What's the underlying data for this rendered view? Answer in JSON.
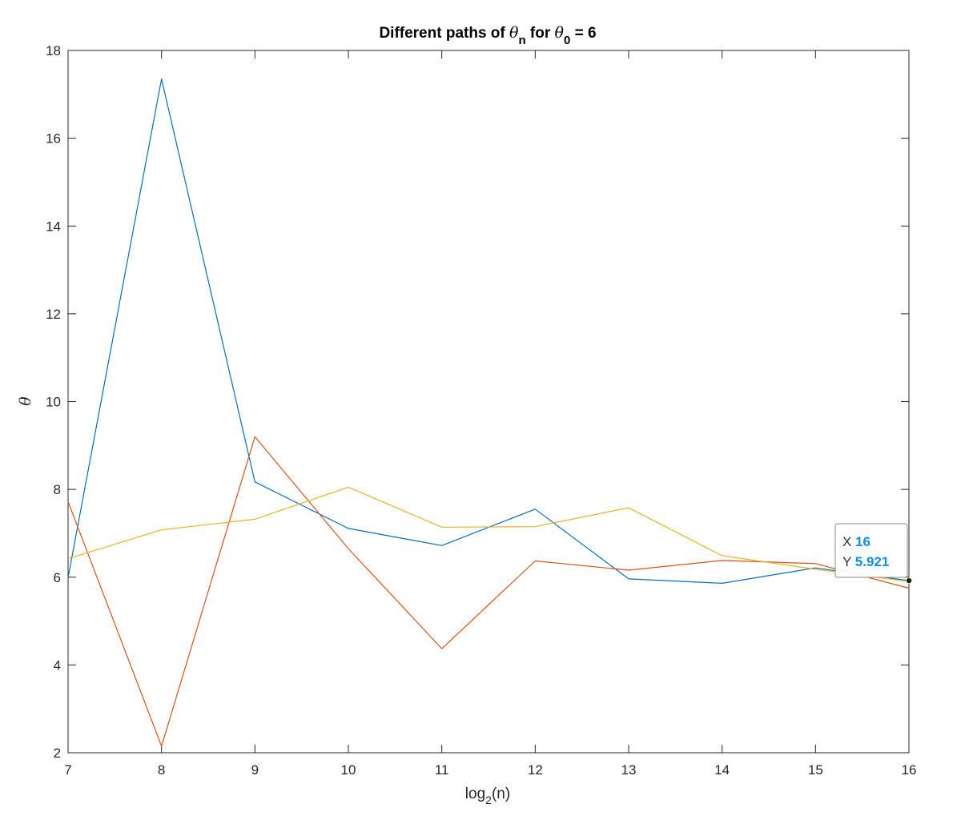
{
  "chart_data": {
    "type": "line",
    "title": {
      "prefix": "Different paths of ",
      "sym1": "θ",
      "sub1": "n",
      "middle": " for ",
      "sym2": "θ",
      "sub2": "0",
      "suffix": " = 6"
    },
    "xlabel": {
      "base": "log",
      "sub": "2",
      "rest": "(n)"
    },
    "ylabel": "θ",
    "xlim": [
      7,
      16
    ],
    "ylim": [
      2,
      18
    ],
    "xticks": [
      7,
      8,
      9,
      10,
      11,
      12,
      13,
      14,
      15,
      16
    ],
    "yticks": [
      2,
      4,
      6,
      8,
      10,
      12,
      14,
      16,
      18
    ],
    "grid": false,
    "x": [
      7,
      8,
      9,
      10,
      11,
      12,
      13,
      14,
      15,
      16
    ],
    "series": [
      {
        "color": "#0072BD",
        "values": [
          5.99,
          17.35,
          8.17,
          7.11,
          6.72,
          7.55,
          5.96,
          5.86,
          6.21,
          5.92
        ]
      },
      {
        "color": "#D95319",
        "values": [
          7.72,
          2.15,
          9.2,
          6.65,
          4.37,
          6.37,
          6.16,
          6.38,
          6.31,
          5.75
        ]
      },
      {
        "color": "#EDB120",
        "values": [
          6.42,
          7.08,
          7.32,
          8.05,
          7.14,
          7.15,
          7.58,
          6.49,
          6.18,
          5.9
        ]
      }
    ],
    "datatip": {
      "x_label": "X",
      "x_value": "16",
      "y_label": "Y",
      "y_value": "5.921",
      "point": [
        16,
        5.921
      ],
      "value_color": "#0F8FE8"
    }
  }
}
